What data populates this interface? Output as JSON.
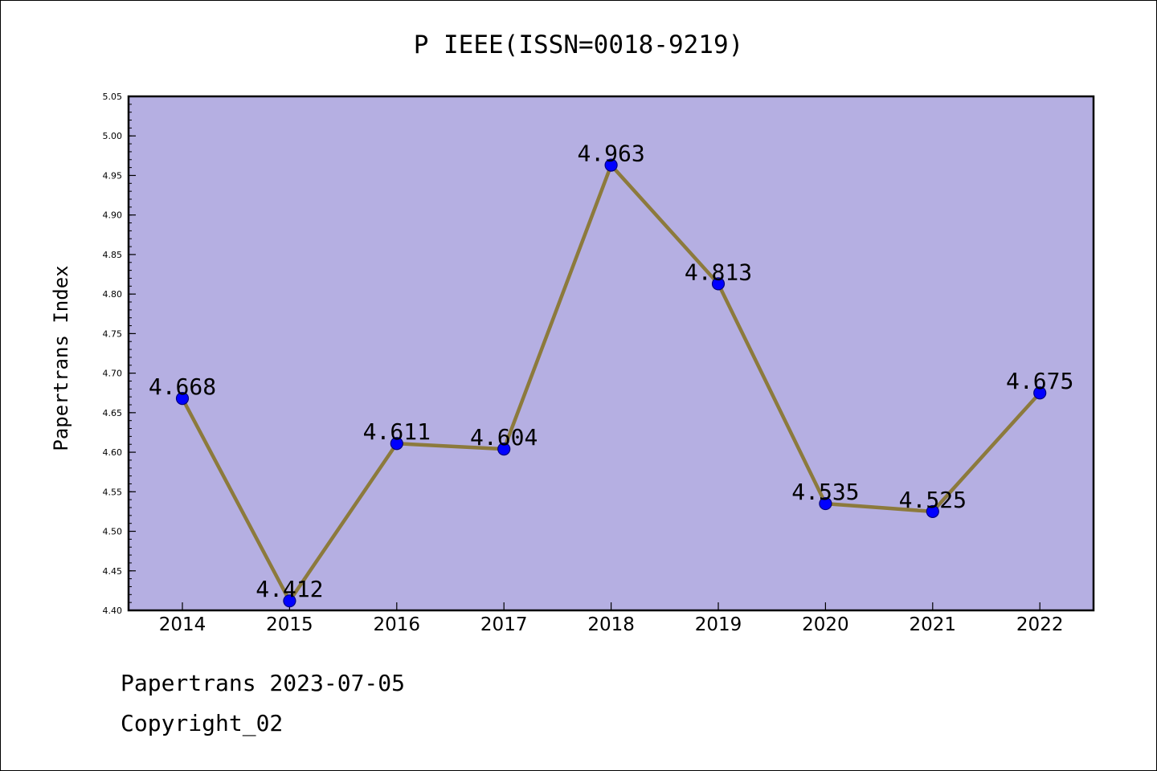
{
  "chart_data": {
    "type": "line",
    "title": "P IEEE(ISSN=0018-9219)",
    "xlabel": "",
    "ylabel": "Papertrans Index",
    "categories": [
      "2014",
      "2015",
      "2016",
      "2017",
      "2018",
      "2019",
      "2020",
      "2021",
      "2022"
    ],
    "values": [
      4.668,
      4.412,
      4.611,
      4.604,
      4.963,
      4.813,
      4.535,
      4.525,
      4.675
    ],
    "data_labels": [
      "4.668",
      "4.412",
      "4.611",
      "4.604",
      "4.963",
      "4.813",
      "4.535",
      "4.525",
      "4.675"
    ],
    "ylim": [
      4.4,
      5.05
    ],
    "yticks": [
      "4.40",
      "4.45",
      "4.50",
      "4.55",
      "4.60",
      "4.65",
      "4.70",
      "4.75",
      "4.80",
      "4.85",
      "4.90",
      "4.95",
      "5.00",
      "5.05"
    ],
    "grid": false,
    "legend": "none",
    "colors": {
      "plot_background": "#b5afe2",
      "line": "#8c7a3c",
      "marker_fill": "#0000ff",
      "marker_edge": "#000080"
    }
  },
  "footer": {
    "line1": "Papertrans 2023-07-05",
    "line2": "Copyright_02"
  }
}
